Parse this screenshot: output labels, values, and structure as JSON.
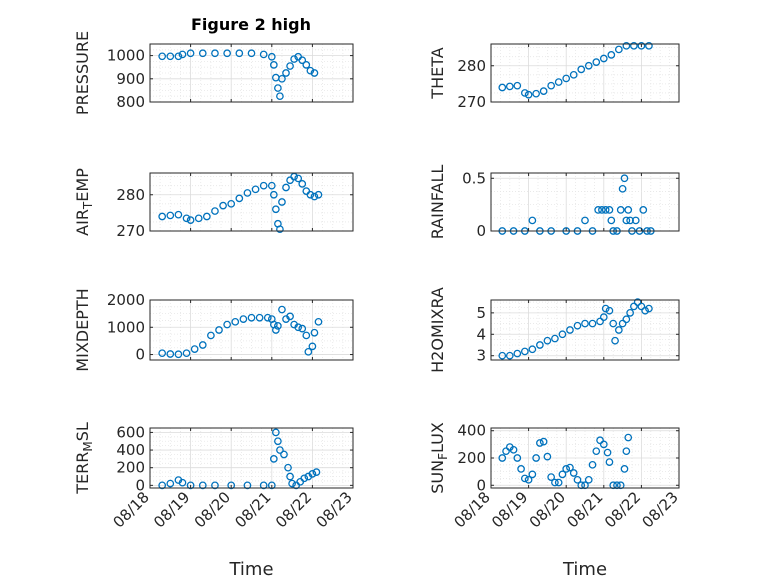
{
  "title": "Figure 2 high",
  "chart_data": [
    {
      "type": "scatter",
      "ylabel": "PRESSURE",
      "ylim": [
        800,
        1050
      ],
      "yticks": [
        800,
        900,
        1000
      ],
      "xlim": [
        0,
        5
      ],
      "xticks": [
        "08/18",
        "08/19",
        "08/20",
        "08/21",
        "08/22",
        "08/23"
      ],
      "xlabel": "",
      "grid": true,
      "points": [
        [
          0.3,
          997
        ],
        [
          0.5,
          997
        ],
        [
          0.7,
          997
        ],
        [
          0.8,
          1005
        ],
        [
          1.0,
          1010
        ],
        [
          1.3,
          1010
        ],
        [
          1.6,
          1010
        ],
        [
          1.9,
          1010
        ],
        [
          2.2,
          1010
        ],
        [
          2.5,
          1010
        ],
        [
          2.8,
          1005
        ],
        [
          3.0,
          995
        ],
        [
          3.05,
          960
        ],
        [
          3.1,
          905
        ],
        [
          3.15,
          860
        ],
        [
          3.2,
          825
        ],
        [
          3.25,
          900
        ],
        [
          3.35,
          925
        ],
        [
          3.45,
          955
        ],
        [
          3.55,
          985
        ],
        [
          3.65,
          995
        ],
        [
          3.75,
          980
        ],
        [
          3.85,
          960
        ],
        [
          3.95,
          935
        ],
        [
          4.05,
          925
        ]
      ]
    },
    {
      "type": "scatter",
      "ylabel": "THETA",
      "ylim": [
        270,
        286
      ],
      "yticks": [
        270,
        280
      ],
      "xlim": [
        0,
        5
      ],
      "xticks": [
        "08/18",
        "08/19",
        "08/20",
        "08/21",
        "08/22",
        "08/23"
      ],
      "xlabel": "",
      "grid": true,
      "points": [
        [
          0.3,
          274
        ],
        [
          0.5,
          274.3
        ],
        [
          0.7,
          274.5
        ],
        [
          0.9,
          272.5
        ],
        [
          1.0,
          272
        ],
        [
          1.2,
          272.3
        ],
        [
          1.4,
          273
        ],
        [
          1.6,
          274.5
        ],
        [
          1.8,
          275.5
        ],
        [
          2.0,
          276.5
        ],
        [
          2.2,
          277.5
        ],
        [
          2.4,
          279
        ],
        [
          2.6,
          280
        ],
        [
          2.8,
          281
        ],
        [
          3.0,
          282
        ],
        [
          3.2,
          283
        ],
        [
          3.4,
          284.5
        ],
        [
          3.6,
          285.5
        ],
        [
          3.8,
          285.5
        ],
        [
          4.0,
          285.5
        ],
        [
          4.2,
          285.5
        ]
      ]
    },
    {
      "type": "scatter",
      "ylabel": "AIR_TEMP",
      "ylim": [
        270,
        286
      ],
      "yticks": [
        270,
        280
      ],
      "xlim": [
        0,
        5
      ],
      "xticks": [
        "08/18",
        "08/19",
        "08/20",
        "08/21",
        "08/22",
        "08/23"
      ],
      "xlabel": "",
      "grid": true,
      "points": [
        [
          0.3,
          274
        ],
        [
          0.5,
          274.3
        ],
        [
          0.7,
          274.5
        ],
        [
          0.9,
          273.5
        ],
        [
          1.0,
          273
        ],
        [
          1.2,
          273.5
        ],
        [
          1.4,
          274
        ],
        [
          1.6,
          275.5
        ],
        [
          1.8,
          277
        ],
        [
          2.0,
          277.5
        ],
        [
          2.2,
          279
        ],
        [
          2.4,
          280.5
        ],
        [
          2.6,
          281.5
        ],
        [
          2.8,
          282.5
        ],
        [
          3.0,
          282.5
        ],
        [
          3.05,
          280
        ],
        [
          3.1,
          276
        ],
        [
          3.15,
          272
        ],
        [
          3.2,
          270.5
        ],
        [
          3.25,
          278
        ],
        [
          3.35,
          282
        ],
        [
          3.45,
          284
        ],
        [
          3.55,
          285
        ],
        [
          3.65,
          284.5
        ],
        [
          3.75,
          283
        ],
        [
          3.85,
          281
        ],
        [
          3.95,
          280
        ],
        [
          4.05,
          279.5
        ],
        [
          4.15,
          280
        ]
      ]
    },
    {
      "type": "scatter",
      "ylabel": "RAINFALL",
      "ylim": [
        0,
        0.55
      ],
      "yticks": [
        0,
        0.5
      ],
      "xlim": [
        0,
        5
      ],
      "xticks": [
        "08/18",
        "08/19",
        "08/20",
        "08/21",
        "08/22",
        "08/23"
      ],
      "xlabel": "",
      "grid": true,
      "points": [
        [
          0.3,
          0
        ],
        [
          0.6,
          0
        ],
        [
          0.9,
          0
        ],
        [
          1.1,
          0.1
        ],
        [
          1.3,
          0
        ],
        [
          1.6,
          0
        ],
        [
          2.0,
          0
        ],
        [
          2.3,
          0
        ],
        [
          2.5,
          0.1
        ],
        [
          2.7,
          0
        ],
        [
          2.85,
          0.2
        ],
        [
          2.95,
          0.2
        ],
        [
          3.05,
          0.2
        ],
        [
          3.15,
          0.2
        ],
        [
          3.2,
          0.1
        ],
        [
          3.25,
          0
        ],
        [
          3.35,
          0
        ],
        [
          3.45,
          0.2
        ],
        [
          3.5,
          0.4
        ],
        [
          3.55,
          0.5
        ],
        [
          3.6,
          0.1
        ],
        [
          3.65,
          0.2
        ],
        [
          3.7,
          0.1
        ],
        [
          3.75,
          0
        ],
        [
          3.85,
          0.1
        ],
        [
          3.95,
          0
        ],
        [
          4.05,
          0.2
        ],
        [
          4.15,
          0
        ],
        [
          4.25,
          0
        ]
      ]
    },
    {
      "type": "scatter",
      "ylabel": "MIXDEPTH",
      "ylim": [
        -200,
        2000
      ],
      "yticks": [
        0,
        1000,
        2000
      ],
      "xlim": [
        0,
        5
      ],
      "xticks": [
        "08/18",
        "08/19",
        "08/20",
        "08/21",
        "08/22",
        "08/23"
      ],
      "xlabel": "",
      "grid": true,
      "points": [
        [
          0.3,
          50
        ],
        [
          0.5,
          20
        ],
        [
          0.7,
          10
        ],
        [
          0.9,
          50
        ],
        [
          1.1,
          200
        ],
        [
          1.3,
          350
        ],
        [
          1.5,
          700
        ],
        [
          1.7,
          900
        ],
        [
          1.9,
          1100
        ],
        [
          2.1,
          1200
        ],
        [
          2.3,
          1300
        ],
        [
          2.5,
          1350
        ],
        [
          2.7,
          1350
        ],
        [
          2.9,
          1350
        ],
        [
          3.0,
          1300
        ],
        [
          3.05,
          1100
        ],
        [
          3.1,
          900
        ],
        [
          3.15,
          1050
        ],
        [
          3.25,
          1650
        ],
        [
          3.35,
          1300
        ],
        [
          3.45,
          1400
        ],
        [
          3.55,
          1100
        ],
        [
          3.65,
          1000
        ],
        [
          3.75,
          950
        ],
        [
          3.85,
          700
        ],
        [
          3.9,
          100
        ],
        [
          4.0,
          300
        ],
        [
          4.05,
          800
        ],
        [
          4.15,
          1200
        ]
      ]
    },
    {
      "type": "scatter",
      "ylabel": "H2OMIXRA",
      "ylim": [
        2.8,
        5.6
      ],
      "yticks": [
        3,
        4,
        5
      ],
      "xlim": [
        0,
        5
      ],
      "xticks": [
        "08/18",
        "08/19",
        "08/20",
        "08/21",
        "08/22",
        "08/23"
      ],
      "xlabel": "",
      "grid": true,
      "points": [
        [
          0.3,
          3.0
        ],
        [
          0.5,
          3.0
        ],
        [
          0.7,
          3.1
        ],
        [
          0.9,
          3.2
        ],
        [
          1.1,
          3.3
        ],
        [
          1.3,
          3.5
        ],
        [
          1.5,
          3.7
        ],
        [
          1.7,
          3.8
        ],
        [
          1.9,
          4.0
        ],
        [
          2.1,
          4.2
        ],
        [
          2.3,
          4.4
        ],
        [
          2.5,
          4.5
        ],
        [
          2.7,
          4.5
        ],
        [
          2.9,
          4.6
        ],
        [
          3.0,
          4.8
        ],
        [
          3.05,
          5.2
        ],
        [
          3.15,
          5.1
        ],
        [
          3.25,
          4.5
        ],
        [
          3.3,
          3.7
        ],
        [
          3.4,
          4.2
        ],
        [
          3.5,
          4.5
        ],
        [
          3.6,
          4.7
        ],
        [
          3.7,
          5.0
        ],
        [
          3.8,
          5.3
        ],
        [
          3.9,
          5.5
        ],
        [
          4.0,
          5.3
        ],
        [
          4.1,
          5.1
        ],
        [
          4.2,
          5.2
        ]
      ]
    },
    {
      "type": "scatter",
      "ylabel": "TERR_MSL",
      "ylim": [
        -30,
        650
      ],
      "yticks": [
        0,
        200,
        400,
        600
      ],
      "xlim": [
        0,
        5
      ],
      "xticks": [
        "08/18",
        "08/19",
        "08/20",
        "08/21",
        "08/22",
        "08/23"
      ],
      "xlabel": "Time",
      "grid": true,
      "points": [
        [
          0.3,
          0
        ],
        [
          0.5,
          20
        ],
        [
          0.7,
          60
        ],
        [
          0.8,
          30
        ],
        [
          1.0,
          0
        ],
        [
          1.3,
          0
        ],
        [
          1.6,
          0
        ],
        [
          2.0,
          0
        ],
        [
          2.4,
          0
        ],
        [
          2.8,
          0
        ],
        [
          3.0,
          0
        ],
        [
          3.05,
          300
        ],
        [
          3.1,
          600
        ],
        [
          3.15,
          500
        ],
        [
          3.2,
          400
        ],
        [
          3.3,
          350
        ],
        [
          3.4,
          200
        ],
        [
          3.45,
          100
        ],
        [
          3.5,
          20
        ],
        [
          3.6,
          0
        ],
        [
          3.7,
          40
        ],
        [
          3.8,
          80
        ],
        [
          3.9,
          100
        ],
        [
          4.0,
          130
        ],
        [
          4.1,
          150
        ]
      ]
    },
    {
      "type": "scatter",
      "ylabel": "SUN_FLUX",
      "ylim": [
        -20,
        420
      ],
      "yticks": [
        0,
        200,
        400
      ],
      "xlim": [
        0,
        5
      ],
      "xticks": [
        "08/18",
        "08/19",
        "08/20",
        "08/21",
        "08/22",
        "08/23"
      ],
      "xlabel": "Time",
      "grid": true,
      "points": [
        [
          0.3,
          200
        ],
        [
          0.4,
          250
        ],
        [
          0.5,
          280
        ],
        [
          0.6,
          260
        ],
        [
          0.7,
          200
        ],
        [
          0.8,
          120
        ],
        [
          0.9,
          50
        ],
        [
          1.0,
          40
        ],
        [
          1.1,
          80
        ],
        [
          1.2,
          200
        ],
        [
          1.3,
          310
        ],
        [
          1.4,
          320
        ],
        [
          1.5,
          210
        ],
        [
          1.6,
          60
        ],
        [
          1.7,
          20
        ],
        [
          1.8,
          20
        ],
        [
          1.9,
          80
        ],
        [
          2.0,
          120
        ],
        [
          2.1,
          130
        ],
        [
          2.2,
          90
        ],
        [
          2.3,
          40
        ],
        [
          2.4,
          0
        ],
        [
          2.5,
          0
        ],
        [
          2.6,
          40
        ],
        [
          2.7,
          150
        ],
        [
          2.8,
          250
        ],
        [
          2.9,
          330
        ],
        [
          3.0,
          300
        ],
        [
          3.1,
          240
        ],
        [
          3.15,
          170
        ],
        [
          3.25,
          0
        ],
        [
          3.35,
          0
        ],
        [
          3.45,
          0
        ],
        [
          3.55,
          120
        ],
        [
          3.6,
          250
        ],
        [
          3.65,
          350
        ]
      ]
    }
  ]
}
